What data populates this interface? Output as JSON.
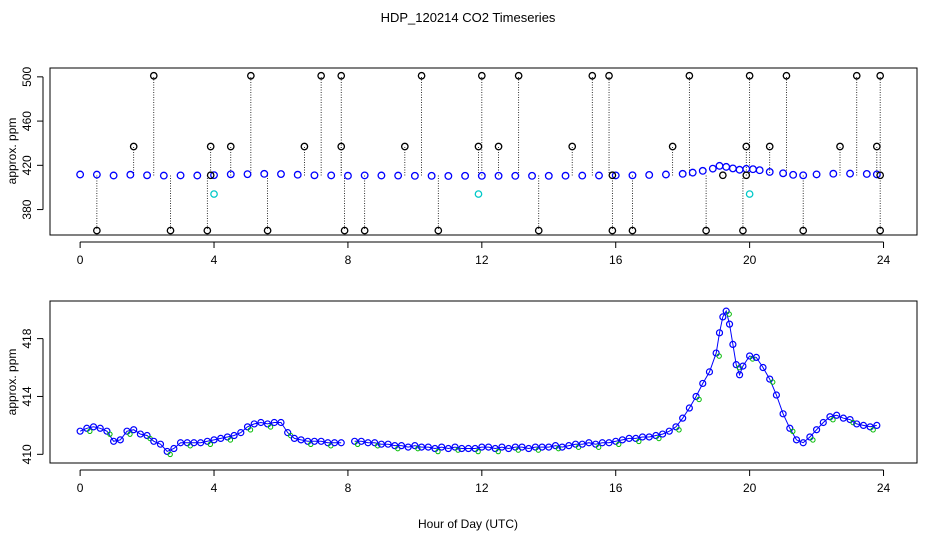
{
  "title": "HDP_120214  CO2 Timeseries",
  "xlabel": "Hour of Day (UTC)",
  "colors": {
    "series": "#0000ff",
    "outlier": "#000000",
    "flagged": "#00c8c8",
    "green": "#00bb00"
  },
  "chart_data": [
    {
      "type": "scatter",
      "name": "top-panel",
      "ylabel": "approx. ppm",
      "xlim": [
        -0.9,
        25.0
      ],
      "ylim": [
        357,
        508
      ],
      "xticks": [
        0,
        4,
        8,
        12,
        16,
        20,
        24
      ],
      "yticks": [
        380,
        420,
        460,
        500
      ],
      "ytick_labels": [
        "380",
        "420",
        "460",
        "500"
      ],
      "series_name": "co2 (approx. ppm)",
      "series_x": [
        0.0,
        0.5,
        1.0,
        1.5,
        2.0,
        2.5,
        3.0,
        3.5,
        4.0,
        4.5,
        5.0,
        5.5,
        6.0,
        6.5,
        7.0,
        7.5,
        8.0,
        8.5,
        9.0,
        9.5,
        10.0,
        10.5,
        11.0,
        11.5,
        12.0,
        12.5,
        13.0,
        13.5,
        14.0,
        14.5,
        15.0,
        15.5,
        16.0,
        16.5,
        17.0,
        17.5,
        18.0,
        18.3,
        18.6,
        18.9,
        19.1,
        19.3,
        19.5,
        19.7,
        19.9,
        20.1,
        20.3,
        20.6,
        21.0,
        21.3,
        21.6,
        22.0,
        22.5,
        23.0,
        23.5,
        23.8
      ],
      "series_y": [
        411.7,
        411.6,
        410.8,
        411.5,
        411.0,
        410.7,
        410.9,
        410.8,
        411.1,
        411.9,
        412.0,
        412.3,
        412.1,
        411.5,
        411.0,
        410.9,
        410.6,
        410.9,
        410.8,
        410.7,
        410.5,
        410.5,
        410.4,
        410.5,
        410.5,
        410.5,
        410.5,
        410.5,
        410.5,
        410.6,
        410.7,
        410.8,
        410.9,
        411.0,
        411.3,
        411.7,
        412.3,
        413.4,
        415.0,
        417.0,
        419.5,
        418.6,
        417.2,
        416.0,
        416.8,
        416.5,
        415.6,
        414.0,
        412.8,
        411.4,
        411.0,
        411.8,
        412.4,
        412.5,
        412.2,
        411.8
      ],
      "outliers_x": [
        0.5,
        1.6,
        2.2,
        2.7,
        3.8,
        3.9,
        3.9,
        4.5,
        5.1,
        5.6,
        6.7,
        7.2,
        7.8,
        7.8,
        7.9,
        8.5,
        9.7,
        10.2,
        10.7,
        11.9,
        12.0,
        12.5,
        13.1,
        13.7,
        14.7,
        15.3,
        15.8,
        15.9,
        15.9,
        16.5,
        17.7,
        18.2,
        18.7,
        19.2,
        19.8,
        19.9,
        19.9,
        20.0,
        20.6,
        21.1,
        21.6,
        22.7,
        23.2,
        23.8,
        23.9,
        23.9,
        23.9
      ],
      "outliers_y": [
        361,
        437,
        501,
        361,
        361,
        411,
        437,
        437,
        501,
        361,
        437,
        501,
        437,
        501,
        361,
        361,
        437,
        501,
        361,
        437,
        501,
        437,
        501,
        361,
        437,
        501,
        501,
        411,
        361,
        361,
        437,
        501,
        361,
        411,
        361,
        411,
        437,
        501,
        437,
        501,
        361,
        437,
        501,
        437,
        501,
        411,
        361
      ],
      "flagged_x": [
        4.0,
        11.9,
        20.0
      ],
      "flagged_y": [
        394,
        394,
        394
      ]
    },
    {
      "type": "line",
      "name": "bottom-panel",
      "ylabel": "approx. ppm",
      "xlim": [
        -0.9,
        25.0
      ],
      "ylim": [
        409.4,
        420.6
      ],
      "xticks": [
        0,
        4,
        8,
        12,
        16,
        20,
        24
      ],
      "yticks": [
        410,
        414,
        418
      ],
      "ytick_labels": [
        "410",
        "414",
        "418"
      ],
      "x": [
        0.0,
        0.2,
        0.4,
        0.6,
        0.8,
        1.0,
        1.2,
        1.4,
        1.6,
        1.8,
        2.0,
        2.2,
        2.4,
        2.6,
        2.8,
        3.0,
        3.2,
        3.4,
        3.6,
        3.8,
        4.0,
        4.2,
        4.4,
        4.6,
        4.8,
        5.0,
        5.2,
        5.4,
        5.6,
        5.8,
        6.0,
        6.2,
        6.4,
        6.6,
        6.8,
        7.0,
        7.2,
        7.4,
        7.6,
        7.8,
        8.2,
        8.4,
        8.6,
        8.8,
        9.0,
        9.2,
        9.4,
        9.6,
        9.8,
        10.0,
        10.2,
        10.4,
        10.6,
        10.8,
        11.0,
        11.2,
        11.4,
        11.6,
        11.8,
        12.0,
        12.2,
        12.4,
        12.6,
        12.8,
        13.0,
        13.2,
        13.4,
        13.6,
        13.8,
        14.0,
        14.2,
        14.4,
        14.6,
        14.8,
        15.0,
        15.2,
        15.4,
        15.6,
        15.8,
        16.0,
        16.2,
        16.4,
        16.6,
        16.8,
        17.0,
        17.2,
        17.4,
        17.6,
        17.8,
        18.0,
        18.2,
        18.4,
        18.6,
        18.8,
        19.0,
        19.1,
        19.2,
        19.3,
        19.4,
        19.5,
        19.6,
        19.7,
        19.8,
        20.0,
        20.2,
        20.4,
        20.6,
        20.8,
        21.0,
        21.2,
        21.4,
        21.6,
        21.8,
        22.0,
        22.2,
        22.4,
        22.6,
        22.8,
        23.0,
        23.2,
        23.4,
        23.6,
        23.8
      ],
      "y": [
        411.6,
        411.8,
        411.9,
        411.8,
        411.6,
        410.9,
        411.0,
        411.6,
        411.7,
        411.4,
        411.3,
        410.9,
        410.7,
        410.2,
        410.4,
        410.8,
        410.8,
        410.8,
        410.8,
        410.9,
        411.0,
        411.1,
        411.2,
        411.3,
        411.5,
        411.9,
        412.1,
        412.2,
        412.1,
        412.2,
        412.2,
        411.5,
        411.1,
        411.0,
        410.9,
        410.9,
        410.9,
        410.8,
        410.8,
        410.8,
        410.9,
        410.9,
        410.8,
        410.8,
        410.7,
        410.7,
        410.6,
        410.6,
        410.5,
        410.6,
        410.5,
        410.5,
        410.4,
        410.5,
        410.4,
        410.5,
        410.4,
        410.4,
        410.4,
        410.5,
        410.5,
        410.4,
        410.5,
        410.4,
        410.5,
        410.5,
        410.4,
        410.5,
        410.5,
        410.5,
        410.6,
        410.5,
        410.6,
        410.7,
        410.7,
        410.8,
        410.7,
        410.8,
        410.8,
        410.9,
        411.0,
        411.1,
        411.1,
        411.2,
        411.2,
        411.3,
        411.4,
        411.6,
        411.9,
        412.5,
        413.2,
        414.0,
        414.9,
        415.7,
        417.0,
        418.4,
        419.5,
        419.9,
        419.0,
        417.6,
        416.2,
        415.5,
        416.1,
        416.8,
        416.7,
        416.0,
        415.2,
        414.1,
        412.8,
        411.8,
        411.0,
        410.8,
        411.2,
        411.7,
        412.2,
        412.6,
        412.7,
        412.5,
        412.4,
        412.1,
        412.0,
        411.9,
        412.0
      ]
    }
  ]
}
